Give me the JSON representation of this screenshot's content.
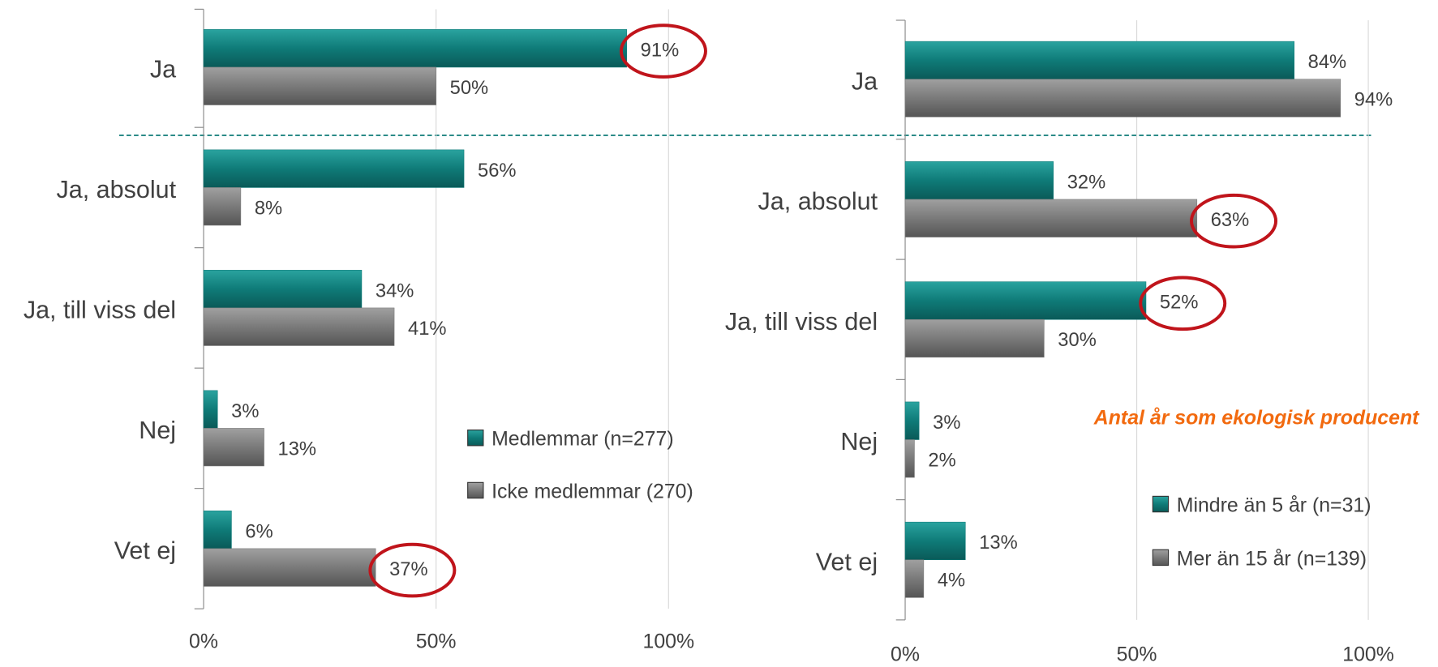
{
  "chart_data": [
    {
      "type": "bar",
      "orientation": "horizontal",
      "categories": [
        "Ja",
        "Ja, absolut",
        "Ja, till viss del",
        "Nej",
        "Vet ej"
      ],
      "series": [
        {
          "name": "Medlemmar (n=277)",
          "color": "#0f7b78",
          "values": [
            91,
            56,
            34,
            3,
            6
          ],
          "value_labels": [
            "91%",
            "56%",
            "34%",
            "3%",
            "6%"
          ]
        },
        {
          "name": "Icke medlemmar (270)",
          "color": "#7a7a7a",
          "values": [
            50,
            8,
            41,
            13,
            37
          ],
          "value_labels": [
            "50%",
            "8%",
            "41%",
            "13%",
            "37%"
          ]
        }
      ],
      "xlim": [
        0,
        100
      ],
      "xticks": [
        {
          "value": 0,
          "label": "0%"
        },
        {
          "value": 50,
          "label": "50%"
        },
        {
          "value": 100,
          "label": "100%"
        }
      ],
      "grid": true
    },
    {
      "type": "bar",
      "orientation": "horizontal",
      "annotation": "Antal år som ekologisk producent",
      "categories": [
        "Ja",
        "Ja, absolut",
        "Ja, till viss del",
        "Nej",
        "Vet ej"
      ],
      "series": [
        {
          "name": "Mindre än 5 år (n=31)",
          "color": "#0f7b78",
          "values": [
            84,
            32,
            52,
            3,
            13
          ],
          "value_labels": [
            "84%",
            "32%",
            "52%",
            "3%",
            "13%"
          ]
        },
        {
          "name": "Mer än 15 år (n=139)",
          "color": "#7a7a7a",
          "values": [
            94,
            63,
            30,
            2,
            4
          ],
          "value_labels": [
            "94%",
            "63%",
            "30%",
            "2%",
            "4%"
          ]
        }
      ],
      "xlim": [
        0,
        100
      ],
      "xticks": [
        {
          "value": 0,
          "label": "0%"
        },
        {
          "value": 50,
          "label": "50%"
        },
        {
          "value": 100,
          "label": "100%"
        }
      ],
      "grid": true
    }
  ]
}
